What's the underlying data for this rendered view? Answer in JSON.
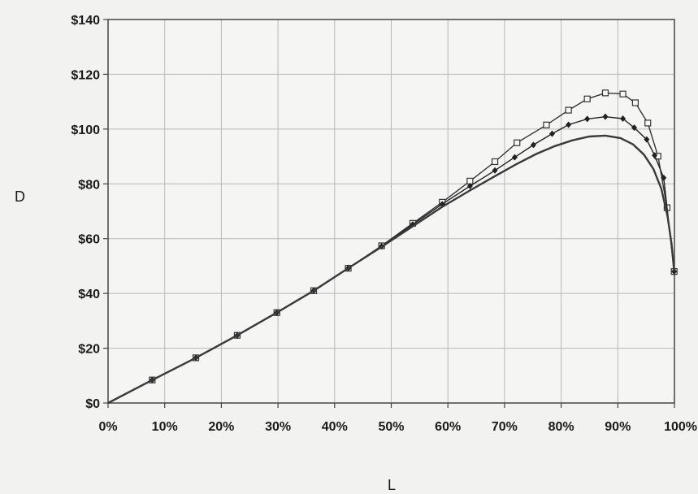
{
  "chart_data": {
    "type": "line",
    "title": "",
    "xlabel": "L",
    "ylabel": "D",
    "xlim": [
      0,
      100
    ],
    "ylim": [
      0,
      140
    ],
    "grid": true,
    "x_ticks": [
      0,
      10,
      20,
      30,
      40,
      50,
      60,
      70,
      80,
      90,
      100
    ],
    "x_tick_labels": [
      "0%",
      "10%",
      "20%",
      "30%",
      "40%",
      "50%",
      "60%",
      "70%",
      "80%",
      "90%",
      "100%"
    ],
    "y_ticks": [
      0,
      20,
      40,
      60,
      80,
      100,
      120,
      140
    ],
    "y_tick_labels": [
      "$0",
      "$20",
      "$40",
      "$60",
      "$80",
      "$100",
      "$120",
      "$140"
    ],
    "series": [
      {
        "marker": "square-open",
        "color": "#333333",
        "points": [
          [
            0,
            0
          ],
          [
            7.8,
            8.4
          ],
          [
            15.5,
            16.5
          ],
          [
            22.8,
            24.7
          ],
          [
            29.8,
            33
          ],
          [
            36.3,
            41
          ],
          [
            42.4,
            49.2
          ],
          [
            48.3,
            57.4
          ],
          [
            53.8,
            65.6
          ],
          [
            59.0,
            73.3
          ],
          [
            63.9,
            81
          ],
          [
            68.3,
            88.1
          ],
          [
            72.2,
            95
          ],
          [
            77.4,
            101.5
          ],
          [
            81.3,
            106.9
          ],
          [
            84.6,
            111
          ],
          [
            87.8,
            113.2
          ],
          [
            90.9,
            112.8
          ],
          [
            93.1,
            109.6
          ],
          [
            95.3,
            102.2
          ],
          [
            97.1,
            90.1
          ],
          [
            98.7,
            71.3
          ],
          [
            99.95,
            48
          ]
        ]
      },
      {
        "marker": "diamond-filled",
        "color": "#222222",
        "points": [
          [
            0,
            0
          ],
          [
            7.8,
            8.4
          ],
          [
            15.5,
            16.5
          ],
          [
            22.8,
            24.7
          ],
          [
            29.8,
            33
          ],
          [
            36.3,
            41
          ],
          [
            42.4,
            49.2
          ],
          [
            48.3,
            57.2
          ],
          [
            53.8,
            65.2
          ],
          [
            59.0,
            72.6
          ],
          [
            63.9,
            79.2
          ],
          [
            68.3,
            84.9
          ],
          [
            71.8,
            89.7
          ],
          [
            75.1,
            94.2
          ],
          [
            78.4,
            98.3
          ],
          [
            81.3,
            101.6
          ],
          [
            84.6,
            103.7
          ],
          [
            87.8,
            104.5
          ],
          [
            90.9,
            103.8
          ],
          [
            92.9,
            100.5
          ],
          [
            95.1,
            96.2
          ],
          [
            96.5,
            90.4
          ],
          [
            98.1,
            82.2
          ],
          [
            99.95,
            48
          ]
        ]
      },
      {
        "marker": "none",
        "color": "#3a3a3a",
        "points": [
          [
            0,
            0
          ],
          [
            7.8,
            8.4
          ],
          [
            15.5,
            16.5
          ],
          [
            22.8,
            24.7
          ],
          [
            29.8,
            33
          ],
          [
            36.3,
            41
          ],
          [
            42.4,
            49.2
          ],
          [
            48.3,
            57
          ],
          [
            53.8,
            64.5
          ],
          [
            59.0,
            71.6
          ],
          [
            63.9,
            77.6
          ],
          [
            68.3,
            82.8
          ],
          [
            72.2,
            87.3
          ],
          [
            75.6,
            90.9
          ],
          [
            78.9,
            93.8
          ],
          [
            82.0,
            95.9
          ],
          [
            85.0,
            97.3
          ],
          [
            87.8,
            97.6
          ],
          [
            90.5,
            96.7
          ],
          [
            92.7,
            94.4
          ],
          [
            94.6,
            90.7
          ],
          [
            96.3,
            85.4
          ],
          [
            97.7,
            78.1
          ],
          [
            98.8,
            68
          ],
          [
            99.5,
            58
          ],
          [
            99.95,
            48
          ]
        ]
      }
    ]
  }
}
